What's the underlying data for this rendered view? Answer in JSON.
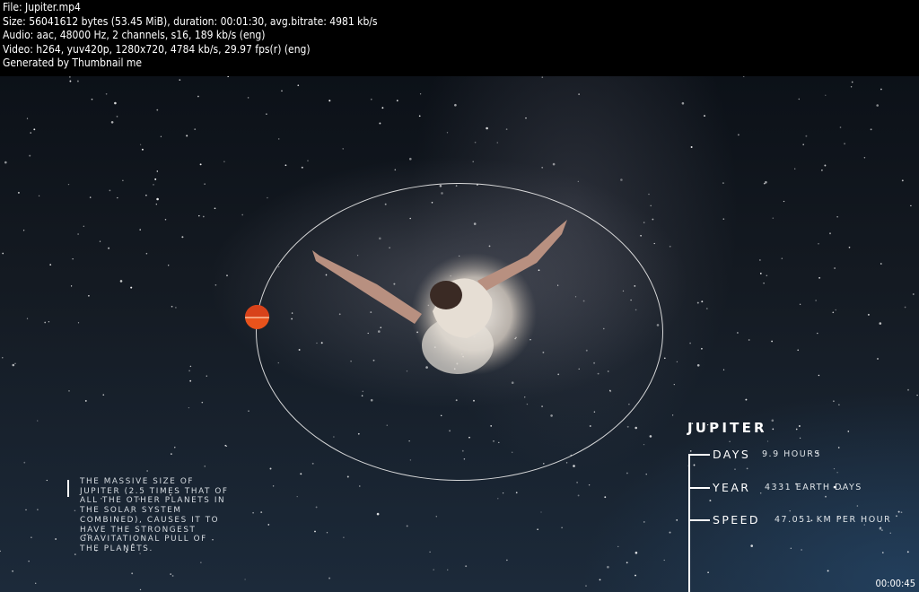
{
  "info": {
    "file": "File: Jupiter.mp4",
    "size": "Size: 56041612 bytes (53.45 MiB), duration: 00:01:30, avg.bitrate: 4981 kb/s",
    "audio": "Audio: aac, 48000 Hz, 2 channels, s16, 189 kb/s (eng)",
    "video": "Video: h264, yuv420p, 1280x720, 4784 kb/s, 29.97 fps(r) (eng)",
    "generator": "Generated by Thumbnail me"
  },
  "scene": {
    "description_lines": [
      "THE MASSIVE SIZE OF",
      "JUPITER (2.5 TIMES THAT OF",
      "ALL THE OTHER PLANETS IN",
      "THE SOLAR SYSTEM",
      "COMBINED), CAUSES IT TO",
      "HAVE THE STRONGEST",
      "GRAVITATIONAL PULL OF",
      "THE PLANETS."
    ],
    "planet_title": "JUPITER",
    "stats": [
      {
        "label": "DAYS",
        "value": "9.9 HOURS"
      },
      {
        "label": "YEAR",
        "value": "4331 EARTH DAYS"
      },
      {
        "label": "SPEED",
        "value": "47.051 KM PER HOUR"
      }
    ],
    "planet_colors": {
      "primary": "#e8531c",
      "shade": "#d8421a"
    }
  },
  "timestamp": "00:00:45"
}
